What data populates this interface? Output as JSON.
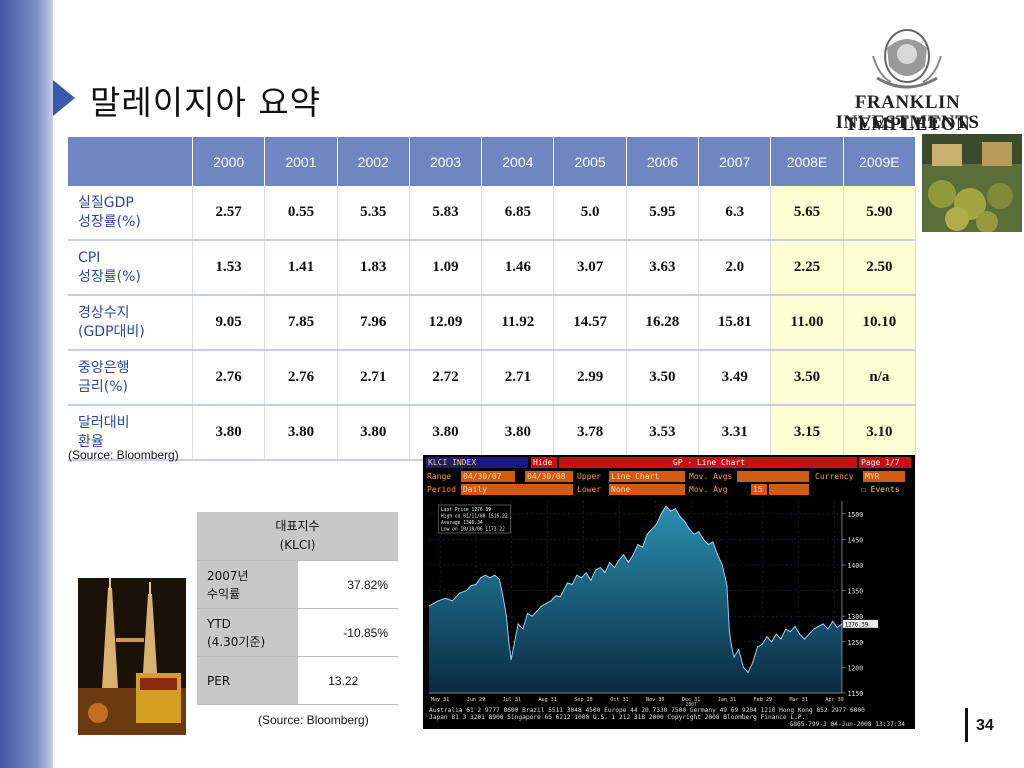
{
  "title": "말레이지아 요약",
  "logo": {
    "line1": "FRANKLIN TEMPLETON",
    "line2": "INVESTMENTS"
  },
  "main_table": {
    "headers": [
      "2000",
      "2001",
      "2002",
      "2003",
      "2004",
      "2005",
      "2006",
      "2007",
      "2008E",
      "2009E"
    ],
    "rows": [
      {
        "label1": "실질GDP",
        "label2": "성장률(%)",
        "values": [
          "2.57",
          "0.55",
          "5.35",
          "5.83",
          "6.85",
          "5.0",
          "5.95",
          "6.3",
          "5.65",
          "5.90"
        ]
      },
      {
        "label1": "CPI",
        "label2": "성장률(%)",
        "values": [
          "1.53",
          "1.41",
          "1.83",
          "1.09",
          "1.46",
          "3.07",
          "3.63",
          "2.0",
          "2.25",
          "2.50"
        ]
      },
      {
        "label1": "경상수지",
        "label2": "(GDP대비)",
        "values": [
          "9.05",
          "7.85",
          "7.96",
          "12.09",
          "11.92",
          "14.57",
          "16.28",
          "15.81",
          "11.00",
          "10.10"
        ]
      },
      {
        "label1": "중앙은행",
        "label2": "금리(%)",
        "values": [
          "2.76",
          "2.76",
          "2.71",
          "2.72",
          "2.71",
          "2.99",
          "3.50",
          "3.49",
          "3.50",
          "n/a"
        ]
      },
      {
        "label1": "달러대비",
        "label2": "환율",
        "values": [
          "3.80",
          "3.80",
          "3.80",
          "3.80",
          "3.80",
          "3.78",
          "3.53",
          "3.31",
          "3.15",
          "3.10"
        ]
      }
    ]
  },
  "source1": "(Source: Bloomberg)",
  "index_table": {
    "header1": "대표지수",
    "header2": "(KLCI)",
    "rows": [
      {
        "label1": "2007년",
        "label2": "수익률",
        "value": "37.82%"
      },
      {
        "label1": "YTD",
        "label2": "(4.30기준)",
        "value": "-10.85%"
      },
      {
        "label1": "PER",
        "label2": "",
        "value": "13.22"
      }
    ]
  },
  "source2": "(Source: Bloomberg)",
  "bloomberg": {
    "ticker": "KLCI INDEX",
    "hide": "Hide",
    "chart_title": "GP - Line Chart",
    "page": "Page 1/7",
    "range_label": "Range",
    "range_from": "04/30/07",
    "range_to": "04/30/08",
    "upper_label": "Upper",
    "upper_val": "Line Chart",
    "movavgs_label": "Mov. Avgs",
    "currency_label": "Currency",
    "currency_val": "MYR",
    "period_label": "Period",
    "period_val": "Daily",
    "lower_label": "Lower",
    "lower_val": "None",
    "movavg_label": "Mov. Avg",
    "movavg_val": "15",
    "events_label": "Events",
    "stats": [
      "Last Price 1276.39",
      "High on 01/11/08 1516.22",
      "Average 1346.34",
      "Low on 10/10/06 1173.22"
    ],
    "last_tag": "1276.39",
    "x_ticks": [
      "May 31",
      "Jun 29",
      "Jul 31",
      "Aug 31",
      "Sep 28",
      "Oct 31",
      "Nov 30",
      "Dec 31",
      "Jan 31",
      "Feb 29",
      "Mar 31",
      "Apr 30"
    ],
    "year_tag": "2007",
    "footer1": "Australia 61 2 9777 8600 Brazil 5511 3048 4500 Europe 44 20 7330 7500 Germany 49 69 9204 1210 Hong Kong 852 2977 6000",
    "footer2": "Japan 81 3 3201 8900      Singapore 65 6212 1000      U.S. 1 212 318 2000      Copyright 2008 Bloomberg Finance L.P.",
    "footer3": "G865-799-3 04-Jun-2008 13:37:34"
  },
  "chart_data": {
    "type": "area",
    "title": "GP - Line Chart",
    "xlabel": "",
    "ylabel": "",
    "ylim": [
      1150,
      1525
    ],
    "y_ticks": [
      1150,
      1200,
      1250,
      1300,
      1350,
      1400,
      1450,
      1500
    ],
    "x_ticks": [
      "May 31",
      "Jun 29",
      "Jul 31",
      "Aug 31",
      "Sep 28",
      "Oct 31",
      "Nov 30",
      "Dec 31",
      "Jan 31",
      "Feb 29",
      "Mar 31",
      "Apr 30"
    ],
    "x": [
      0,
      8,
      14,
      20,
      26,
      32,
      36,
      40,
      44,
      48,
      52,
      56,
      60,
      63,
      66,
      68,
      70,
      73,
      76,
      80,
      84,
      88,
      92,
      96,
      100,
      104,
      108,
      112,
      118,
      122,
      126,
      130,
      134,
      138,
      142,
      146,
      150,
      154,
      158,
      162,
      166,
      170,
      174,
      178,
      182,
      186,
      190,
      194,
      198,
      202,
      206,
      210,
      214,
      218,
      222,
      226,
      230,
      234,
      238,
      242,
      246,
      250,
      254,
      256,
      258,
      260,
      264,
      268,
      272,
      276,
      280,
      284,
      288,
      292,
      296,
      300,
      304,
      308,
      312,
      316,
      320,
      324,
      328,
      332,
      336,
      340,
      344,
      348,
      352
    ],
    "values": [
      1320,
      1330,
      1335,
      1330,
      1345,
      1350,
      1360,
      1362,
      1375,
      1380,
      1375,
      1380,
      1372,
      1340,
      1300,
      1250,
      1215,
      1250,
      1285,
      1275,
      1305,
      1300,
      1310,
      1320,
      1325,
      1330,
      1340,
      1338,
      1365,
      1362,
      1380,
      1375,
      1385,
      1370,
      1390,
      1395,
      1385,
      1405,
      1395,
      1410,
      1420,
      1405,
      1420,
      1440,
      1435,
      1460,
      1470,
      1480,
      1500,
      1515,
      1505,
      1510,
      1495,
      1485,
      1470,
      1460,
      1465,
      1450,
      1440,
      1445,
      1420,
      1400,
      1360,
      1270,
      1240,
      1220,
      1235,
      1200,
      1190,
      1210,
      1240,
      1245,
      1260,
      1250,
      1265,
      1255,
      1275,
      1270,
      1280,
      1265,
      1255,
      1265,
      1275,
      1280,
      1285,
      1275,
      1290,
      1278,
      1285
    ]
  }
}
